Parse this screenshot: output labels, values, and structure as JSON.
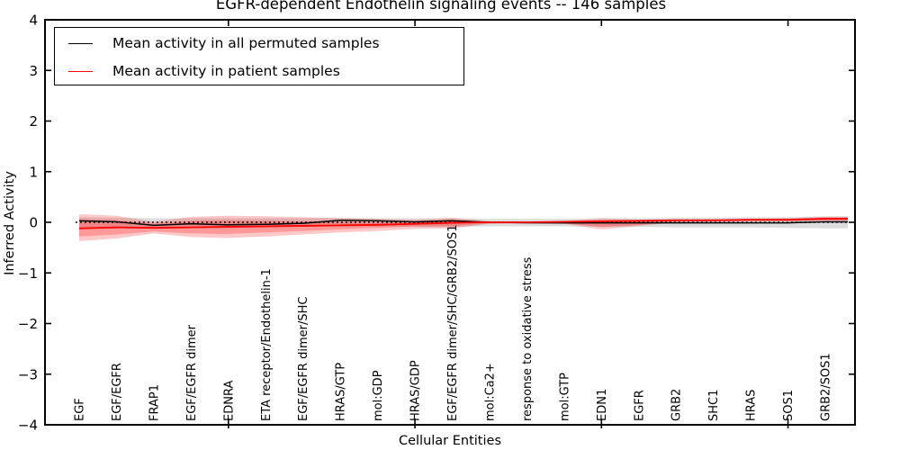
{
  "figure": {
    "title": "EGFR-dependent Endothelin signaling events -- 146 samples",
    "xlabel": "Cellular Entities",
    "ylabel": "Inferred Activity"
  },
  "legend": {
    "entries": [
      {
        "label": "Mean activity in all permuted samples",
        "color": "#000000"
      },
      {
        "label": "Mean activity in patient samples",
        "color": "#ff0000"
      }
    ]
  },
  "chart_data": {
    "type": "line",
    "title": "EGFR-dependent Endothelin signaling events -- 146 samples",
    "xlabel": "Cellular Entities",
    "ylabel": "Inferred Activity",
    "ylim": [
      -4,
      4
    ],
    "ytick_labels": [
      "4",
      "3",
      "2",
      "1",
      "0",
      "−1",
      "−2",
      "−3",
      "−4"
    ],
    "ytick_values": [
      4,
      3,
      2,
      1,
      0,
      -1,
      -2,
      -3,
      -4
    ],
    "grid": false,
    "legend_position": "upper left",
    "zero_reference_line": {
      "value": 0,
      "style": "dotted",
      "color": "#000000"
    },
    "major_xtick_indices": [
      4,
      9,
      14,
      19
    ],
    "categories": [
      "EGF",
      "EGF/EGFR",
      "FRAP1",
      "EGF/EGFR dimer",
      "EDNRA",
      "ETA receptor/Endothelin-1",
      "EGF/EGFR dimer/SHC",
      "HRAS/GTP",
      "mol:GDP",
      "HRAS/GDP",
      "EGF/EGFR dimer/SHC/GRB2/SOS1",
      "mol:Ca2+",
      "response to oxidative stress",
      "mol:GTP",
      "EDN1",
      "EGFR",
      "GRB2",
      "SHC1",
      "HRAS",
      "SOS1",
      "GRB2/SOS1"
    ],
    "series": [
      {
        "name": "Mean activity in all permuted samples",
        "color": "#000000",
        "values": [
          0.03,
          0.01,
          -0.06,
          -0.03,
          -0.05,
          -0.04,
          -0.02,
          0.04,
          0.03,
          0.01,
          0.03,
          0.0,
          -0.01,
          -0.01,
          -0.01,
          -0.01,
          -0.01,
          -0.01,
          -0.01,
          -0.01,
          0.01
        ]
      },
      {
        "name": "Mean activity in patient samples",
        "color": "#ff0000",
        "values": [
          -0.12,
          -0.1,
          -0.11,
          -0.1,
          -0.09,
          -0.08,
          -0.07,
          -0.06,
          -0.05,
          -0.03,
          -0.01,
          0.0,
          0.0,
          0.01,
          0.02,
          0.03,
          0.04,
          0.04,
          0.05,
          0.05,
          0.07
        ]
      }
    ],
    "bands": [
      {
        "name": "permuted-samples-std-band",
        "color": "#aaaaaa",
        "opacity": 0.4,
        "top": [
          0.1,
          0.09,
          0.08,
          0.08,
          0.08,
          0.08,
          0.08,
          0.09,
          0.08,
          0.08,
          0.08,
          0.07,
          0.07,
          0.07,
          0.08,
          0.08,
          0.09,
          0.09,
          0.1,
          0.1,
          0.12
        ],
        "bottom": [
          -0.12,
          -0.11,
          -0.1,
          -0.1,
          -0.1,
          -0.1,
          -0.09,
          -0.08,
          -0.08,
          -0.09,
          -0.09,
          -0.08,
          -0.08,
          -0.08,
          -0.09,
          -0.09,
          -0.1,
          -0.1,
          -0.1,
          -0.11,
          -0.12
        ]
      },
      {
        "name": "patient-samples-std-band-outer",
        "color": "#ff2222",
        "opacity": 0.25,
        "top": [
          0.16,
          0.13,
          0.01,
          0.11,
          0.13,
          0.12,
          0.1,
          0.08,
          0.07,
          0.05,
          0.09,
          0.02,
          0.01,
          0.02,
          0.08,
          0.05,
          0.06,
          0.06,
          0.07,
          0.08,
          0.11
        ],
        "bottom": [
          -0.37,
          -0.32,
          -0.22,
          -0.29,
          -0.31,
          -0.28,
          -0.24,
          -0.2,
          -0.17,
          -0.13,
          -0.12,
          -0.03,
          -0.02,
          -0.03,
          -0.14,
          -0.07,
          0.0,
          0.01,
          0.02,
          0.02,
          0.01
        ]
      },
      {
        "name": "patient-samples-std-band-inner",
        "color": "#ff2222",
        "opacity": 0.28,
        "top": [
          0.06,
          0.04,
          -0.03,
          0.03,
          0.04,
          0.03,
          0.02,
          0.01,
          0.01,
          0.0,
          0.04,
          0.01,
          0.0,
          0.01,
          0.04,
          0.02,
          0.05,
          0.05,
          0.06,
          0.06,
          0.09
        ],
        "bottom": [
          -0.28,
          -0.24,
          -0.18,
          -0.22,
          -0.23,
          -0.2,
          -0.17,
          -0.14,
          -0.11,
          -0.08,
          -0.08,
          -0.02,
          -0.01,
          -0.02,
          -0.09,
          -0.05,
          0.02,
          0.02,
          0.03,
          0.03,
          0.04
        ]
      }
    ]
  }
}
